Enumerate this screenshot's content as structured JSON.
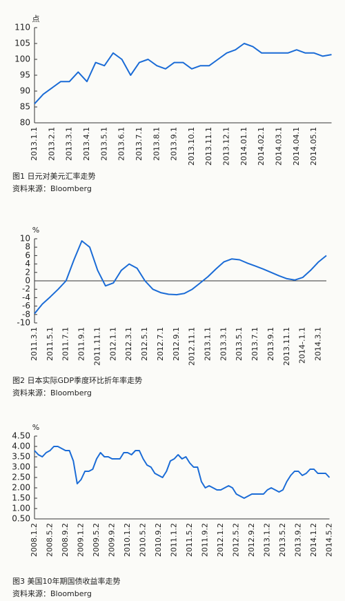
{
  "chart_data": [
    {
      "type": "line",
      "y_unit": "点",
      "caption": "图1  日元对美元汇率走势",
      "source": "资料来源：Bloomberg",
      "color": "#1a6bd6",
      "categories": [
        "2013.1.1",
        null,
        "2013.2.1",
        null,
        "2013.3.1",
        null,
        "2013.4.1",
        null,
        "2013.5.1",
        null,
        "2013.6.1",
        null,
        "2013.7.1",
        null,
        "2013.8.1",
        null,
        "2013.9.1",
        null,
        "2013.10.1",
        null,
        "2013.11.1",
        null,
        "2013.12.1",
        null,
        "2014.01.1",
        null,
        "2014.02.1",
        null,
        "2014.03.1",
        null,
        "2014.04.1",
        null,
        "2014.05.1",
        null,
        null
      ],
      "values": [
        86,
        89,
        91,
        93,
        93,
        96,
        93,
        99,
        98,
        102,
        100,
        95,
        99,
        100,
        98,
        97,
        99,
        99,
        97,
        98,
        98,
        100,
        102,
        103,
        105,
        104,
        102,
        102,
        102,
        102,
        103,
        102,
        102,
        101,
        101.5
      ],
      "ylim": [
        80,
        110
      ],
      "yticks": [
        80,
        85,
        90,
        95,
        100,
        105,
        110
      ]
    },
    {
      "type": "line",
      "y_unit": "%",
      "caption": "图2  日本实际GDP季度环比折年率走势",
      "source": "资料来源：Bloomberg",
      "color": "#1a6bd6",
      "categories": [
        "2011.3.1",
        null,
        "2011.5.1",
        null,
        "2011.7.1",
        null,
        "2011.9.1",
        null,
        "2011.11.1",
        null,
        "2012.1.1",
        null,
        "2012.3.1",
        null,
        "2012.5.1",
        null,
        "2012.7.1",
        null,
        "2012.9.1",
        null,
        "2012.11.1",
        null,
        "2013.1.1",
        null,
        "2013.3.1",
        null,
        "2013.5.1",
        null,
        "2013.7.1",
        null,
        "2013.9.1",
        null,
        "2013.11.1",
        null,
        "2014-.1.1",
        null,
        "2014.3.1",
        null
      ],
      "values": [
        -7.8,
        -5.5,
        -3.8,
        -2,
        0,
        5,
        9.5,
        8,
        2.5,
        -1.2,
        -0.5,
        2.5,
        4,
        3,
        0,
        -2,
        -2.8,
        -3.2,
        -3.3,
        -3,
        -2,
        -0.5,
        1,
        2.8,
        4.5,
        5.2,
        5,
        4.2,
        3.5,
        2.8,
        2,
        1.2,
        0.5,
        0.2,
        0.8,
        2.5,
        4.5,
        6
      ],
      "ylim": [
        -10,
        10
      ],
      "yticks": [
        -10,
        -8,
        -6,
        -4,
        -2,
        0,
        2,
        4,
        6,
        8,
        10
      ]
    },
    {
      "type": "line",
      "y_unit": "%",
      "caption": "图3  美国10年期国债收益率走势",
      "source": "资料来源：Bloomberg",
      "color": "#1a6bd6",
      "categories": [
        "2008.1.2",
        null,
        null,
        null,
        "2008.5.2",
        null,
        null,
        null,
        "2008.9.2",
        null,
        null,
        null,
        "2009.1.2",
        null,
        null,
        null,
        "2009.5.2",
        null,
        null,
        null,
        "2009.9.2",
        null,
        null,
        null,
        "2010.1.2",
        null,
        null,
        null,
        "2010.5.2",
        null,
        null,
        null,
        "2010.9.2",
        null,
        null,
        null,
        "2011.1.2",
        null,
        null,
        null,
        "2011.5.2",
        null,
        null,
        null,
        "2011.9.2",
        null,
        null,
        null,
        "2012.1.2",
        null,
        null,
        null,
        "2012.5.2",
        null,
        null,
        null,
        "2012.9.2",
        null,
        null,
        null,
        "2013.1.2",
        null,
        null,
        null,
        "2013.5.2",
        null,
        null,
        null,
        "2013.9.2",
        null,
        null,
        null,
        "2014.1.2",
        null,
        null,
        null,
        "2014.5.2"
      ],
      "values": [
        3.8,
        3.6,
        3.5,
        3.7,
        3.8,
        4.0,
        4.0,
        3.9,
        3.8,
        3.8,
        3.3,
        2.2,
        2.4,
        2.8,
        2.8,
        2.9,
        3.4,
        3.7,
        3.5,
        3.5,
        3.4,
        3.4,
        3.4,
        3.7,
        3.7,
        3.6,
        3.8,
        3.8,
        3.4,
        3.1,
        3.0,
        2.7,
        2.6,
        2.5,
        2.8,
        3.3,
        3.4,
        3.6,
        3.4,
        3.5,
        3.2,
        3.0,
        3.0,
        2.3,
        2.0,
        2.1,
        2.0,
        1.9,
        1.9,
        2.0,
        2.1,
        2.0,
        1.7,
        1.6,
        1.5,
        1.6,
        1.7,
        1.7,
        1.7,
        1.7,
        1.9,
        2.0,
        1.9,
        1.8,
        1.9,
        2.3,
        2.6,
        2.8,
        2.8,
        2.6,
        2.7,
        2.9,
        2.9,
        2.7,
        2.7,
        2.7,
        2.5
      ],
      "ylim": [
        0.5,
        4.5
      ],
      "yticks": [
        {
          "value": 0.5,
          "label": "0.50"
        },
        {
          "value": 1,
          "label": "1.00"
        },
        {
          "value": 1.5,
          "label": "1.50"
        },
        {
          "value": 2,
          "label": "2.00"
        },
        {
          "value": 2.5,
          "label": "2.50"
        },
        {
          "value": 3,
          "label": "3.00"
        },
        {
          "value": 3.5,
          "label": "3.50"
        },
        {
          "value": 4,
          "label": "4.00"
        },
        {
          "value": 4.5,
          "label": "4.50"
        }
      ]
    }
  ]
}
